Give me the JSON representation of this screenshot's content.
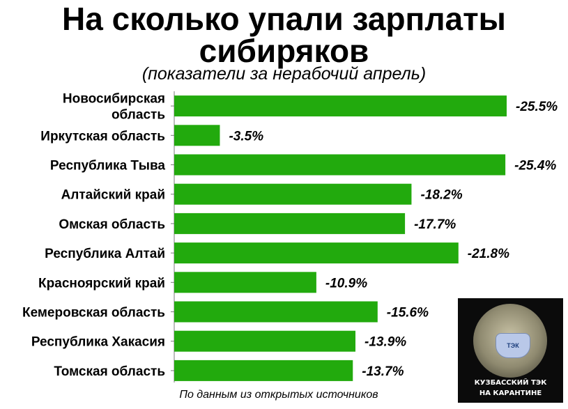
{
  "chart_data": {
    "type": "bar",
    "orientation": "horizontal",
    "title_lines": [
      "На сколько упали зарплаты",
      "сибиряков"
    ],
    "subtitle": "(показатели за нерабочий апрель)",
    "categories": [
      [
        "Новосибирская",
        "область"
      ],
      [
        "Иркутская область"
      ],
      [
        "Республика Тыва"
      ],
      [
        "Алтайский край"
      ],
      [
        "Омская область"
      ],
      [
        "Республика Алтай"
      ],
      [
        "Красноярский край"
      ],
      [
        "Кемеровская область"
      ],
      [
        "Республика Хакасия"
      ],
      [
        "Томская область"
      ]
    ],
    "values": [
      -25.5,
      -3.5,
      -25.4,
      -18.2,
      -17.7,
      -21.8,
      -10.9,
      -15.6,
      -13.9,
      -13.7
    ],
    "value_labels": [
      "-25.5%",
      "-3.5%",
      "-25.4%",
      "-18.2%",
      "-17.7%",
      "-21.8%",
      "-10.9%",
      "-15.6%",
      "-13.9%",
      "-13.7%"
    ],
    "bar_color": "#22aa0d",
    "grid": false,
    "source": "По данным из открытых источников"
  },
  "logo": {
    "mask_text": "ТЭК",
    "line1": "КУЗБАССКИЙ ТЭК",
    "line2": "НА КАРАНТИНЕ"
  }
}
